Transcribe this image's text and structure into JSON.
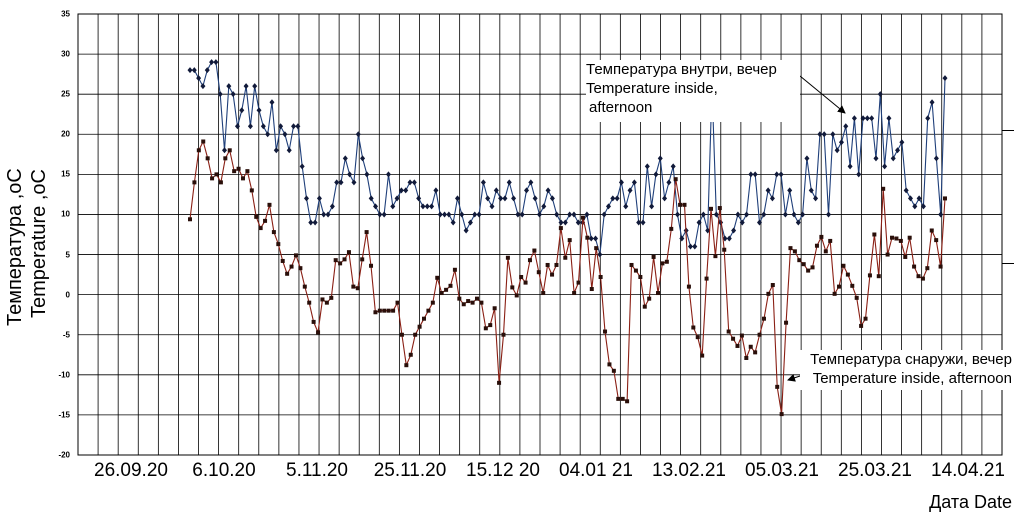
{
  "chart_data": {
    "type": "line",
    "title": "",
    "ylabel_lines": [
      "Температура ,oC",
      "Temperature ,oC"
    ],
    "xlabel": "Дата Date",
    "ylim": [
      -20,
      35
    ],
    "yticks": [
      "35",
      "30",
      "25",
      "20",
      "15",
      "10",
      "5",
      "0",
      "-5",
      "-10",
      "-15",
      "-20"
    ],
    "xtick_labels": [
      "26.09.20",
      "6.10.20",
      "5.11.20",
      "25.11.20",
      "15.12 20",
      "04.01 21",
      "13.02.21",
      "05.03.21",
      "25.03.21",
      "14.04.21"
    ],
    "grid": true,
    "series": [
      {
        "name": "Температура внутри, вечер Temperature inside, afternoon",
        "color": "#1f3f7a",
        "marker": "diamond",
        "values": [
          28,
          28,
          27,
          26,
          28,
          29,
          29,
          25,
          18,
          26,
          25,
          21,
          23,
          26,
          21,
          26,
          23,
          21,
          20,
          24,
          18,
          21,
          20,
          18,
          21,
          21,
          16,
          12,
          9,
          9,
          12,
          10,
          10,
          11,
          14,
          14,
          17,
          15,
          14,
          20,
          17,
          15,
          12,
          11,
          10,
          10,
          15,
          11,
          12,
          13,
          13,
          14,
          14,
          12,
          11,
          11,
          11,
          13,
          10,
          10,
          10,
          9,
          12,
          10,
          8,
          9,
          10,
          10,
          14,
          12,
          11,
          13,
          12,
          12,
          14,
          12,
          10,
          10,
          13,
          14,
          12,
          10,
          11,
          13,
          12,
          10,
          9,
          9,
          10,
          10,
          9,
          9,
          10,
          7,
          7,
          5,
          10,
          11,
          12,
          12,
          14,
          11,
          13,
          14,
          9,
          9,
          16,
          11,
          15,
          17,
          12,
          14,
          16,
          10,
          7,
          8,
          6,
          6,
          9,
          10,
          8,
          26,
          10,
          9,
          7,
          7,
          8,
          10,
          9,
          10,
          15,
          15,
          9,
          10,
          13,
          12,
          15,
          15,
          10,
          13,
          10,
          9,
          10,
          17,
          13,
          12,
          20,
          20,
          10,
          20,
          18,
          19,
          21,
          16,
          22,
          15,
          22,
          22,
          22,
          17,
          25,
          16,
          22,
          17,
          18,
          19,
          13,
          12,
          11,
          12,
          11,
          22,
          24,
          17,
          10,
          27
        ]
      },
      {
        "name": "Температура снаружи, вечер Temperature inside, afternoon",
        "color": "#8a1f14",
        "marker": "square",
        "values": [
          9.4,
          14,
          18,
          19.1,
          17,
          14.5,
          15,
          14,
          17,
          18,
          15.4,
          15.7,
          14.5,
          15.4,
          13,
          9.7,
          8.3,
          9.2,
          11.2,
          7.8,
          6.3,
          4.2,
          2.6,
          3.5,
          4.9,
          3.3,
          1,
          -1,
          -3.4,
          -4.7,
          -0.6,
          -1,
          -0.4,
          4.3,
          3.9,
          4.4,
          5.3,
          1,
          0.8,
          4.4,
          7.8,
          3.6,
          -2.2,
          -2,
          -2,
          -2,
          -2,
          -1,
          -5,
          -8.8,
          -7.5,
          -5,
          -4,
          -3,
          -2,
          -1,
          2.1,
          0.2,
          0.6,
          1.1,
          3.1,
          -0.5,
          -1.2,
          -0.8,
          -1,
          -0.5,
          -1,
          -4.2,
          -3.8,
          -1.7,
          -11,
          -5,
          4.6,
          0.9,
          -0.1,
          2.2,
          1.5,
          4.3,
          5.5,
          2.8,
          0.2,
          3.7,
          2.5,
          3.7,
          8.3,
          4.6,
          6.8,
          0.2,
          1.5,
          9.6,
          7.1,
          0.7,
          5.8,
          2.2,
          -4.6,
          -8.7,
          -9.5,
          -13,
          -13,
          -13.3,
          3.7,
          3,
          2.2,
          -1.5,
          -0.5,
          4.7,
          0.2,
          3.9,
          4.1,
          8.2,
          14.4,
          11.2,
          11.2,
          1,
          -4.1,
          -5.3,
          -7.6,
          2,
          10.7,
          4.8,
          10.8,
          5.6,
          -4.6,
          -5.5,
          -6.4,
          -5.1,
          -7.9,
          -6.5,
          -7.2,
          -5,
          -3,
          0.1,
          1.2,
          -11.5,
          -14.9,
          -3.5,
          5.8,
          5.4,
          4.3,
          3.8,
          3,
          3.4,
          6.1,
          7.2,
          5.4,
          6.7,
          0.1,
          1,
          3.6,
          2.5,
          1.1,
          -0.4,
          -3.9,
          -3,
          2.4,
          7.5,
          2.3,
          13.2,
          5,
          7.1,
          7,
          6.7,
          4.7,
          7.1,
          3.5,
          2.3,
          2,
          3.3,
          8,
          6.8,
          3.5,
          12
        ]
      }
    ]
  },
  "annotations": {
    "inside": [
      "Температура внутри, вечер",
      "Temperature inside,",
      " afternoon"
    ],
    "outside": [
      "Температура снаружи, вечер",
      "Temperature inside, afternoon"
    ]
  }
}
